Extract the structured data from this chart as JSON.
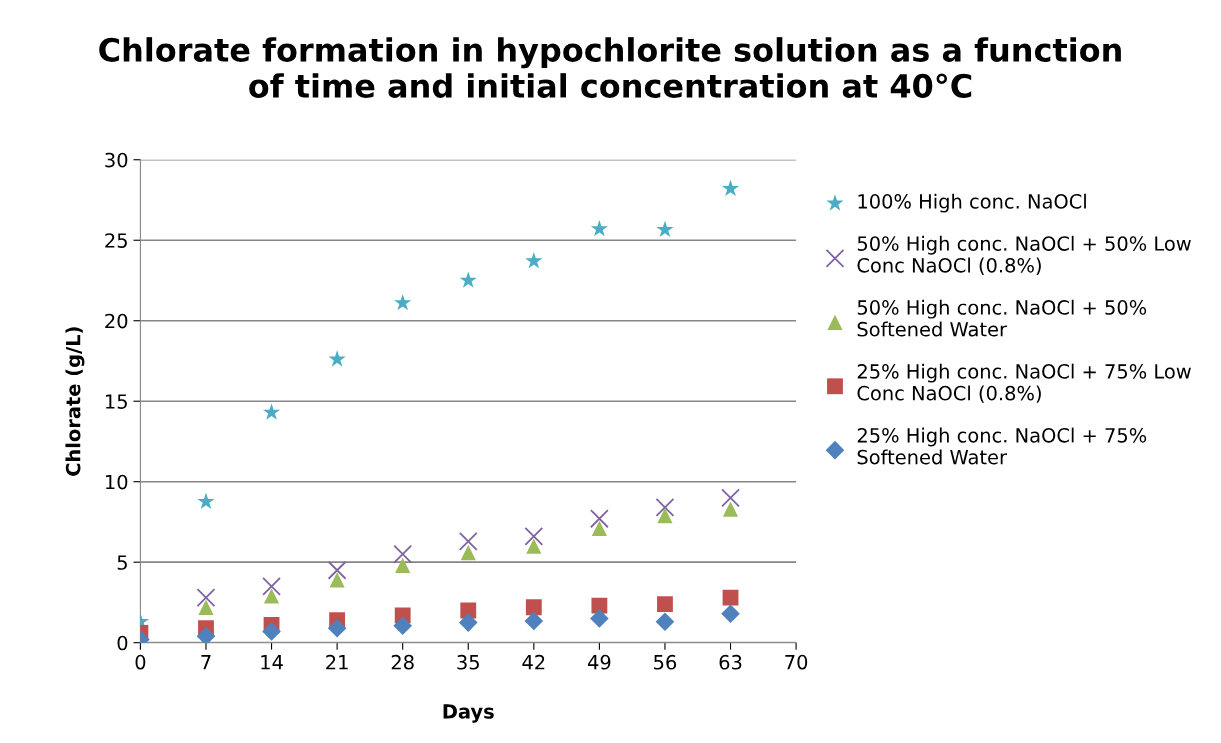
{
  "chart_data": {
    "type": "scatter",
    "title": "Chlorate formation in hypochlorite solution as a function\nof time and initial concentration at 40°C",
    "xlabel": "Days",
    "ylabel": "Chlorate (g/L)",
    "x": [
      0,
      7,
      14,
      21,
      28,
      35,
      42,
      49,
      56,
      63
    ],
    "series": [
      {
        "name": "100% High conc. NaOCl",
        "color": "#4bacc6",
        "marker": "star",
        "values": [
          1.3,
          8.76,
          14.3,
          17.6,
          21.1,
          22.5,
          23.7,
          25.7,
          25.65,
          28.2
        ]
      },
      {
        "name": "50% High conc. NaOCl + 50% Low\nConc NaOCl (0.8%)",
        "color": "#8064a2",
        "marker": "cross",
        "values": [
          null,
          2.8,
          3.5,
          4.5,
          5.5,
          6.3,
          6.6,
          7.7,
          8.4,
          9.0
        ]
      },
      {
        "name": "50% High conc. NaOCl + 50%\nSoftened Water",
        "color": "#9bbb59",
        "marker": "triangle",
        "values": [
          null,
          2.2,
          2.9,
          3.9,
          4.8,
          5.6,
          6.0,
          7.1,
          7.9,
          8.3
        ]
      },
      {
        "name": "25% High conc. NaOCl + 75% Low\nConc NaOCl (0.8%)",
        "color": "#c0504d",
        "marker": "square",
        "values": [
          0.6,
          0.9,
          1.1,
          1.4,
          1.7,
          2.0,
          2.2,
          2.3,
          2.4,
          2.8
        ]
      },
      {
        "name": "25% High conc. NaOCl + 75%\nSoftened Water",
        "color": "#4f81bd",
        "marker": "diamond",
        "values": [
          0.2,
          0.4,
          0.7,
          0.9,
          1.05,
          1.25,
          1.35,
          1.5,
          1.3,
          1.8
        ]
      }
    ],
    "xlim": [
      0,
      70
    ],
    "xticks": [
      0,
      7,
      14,
      21,
      28,
      35,
      42,
      49,
      56,
      63,
      70
    ],
    "ylim": [
      0,
      30
    ],
    "yticks": [
      0,
      5,
      10,
      15,
      20,
      25,
      30
    ],
    "grid": "y",
    "legend": "right"
  }
}
